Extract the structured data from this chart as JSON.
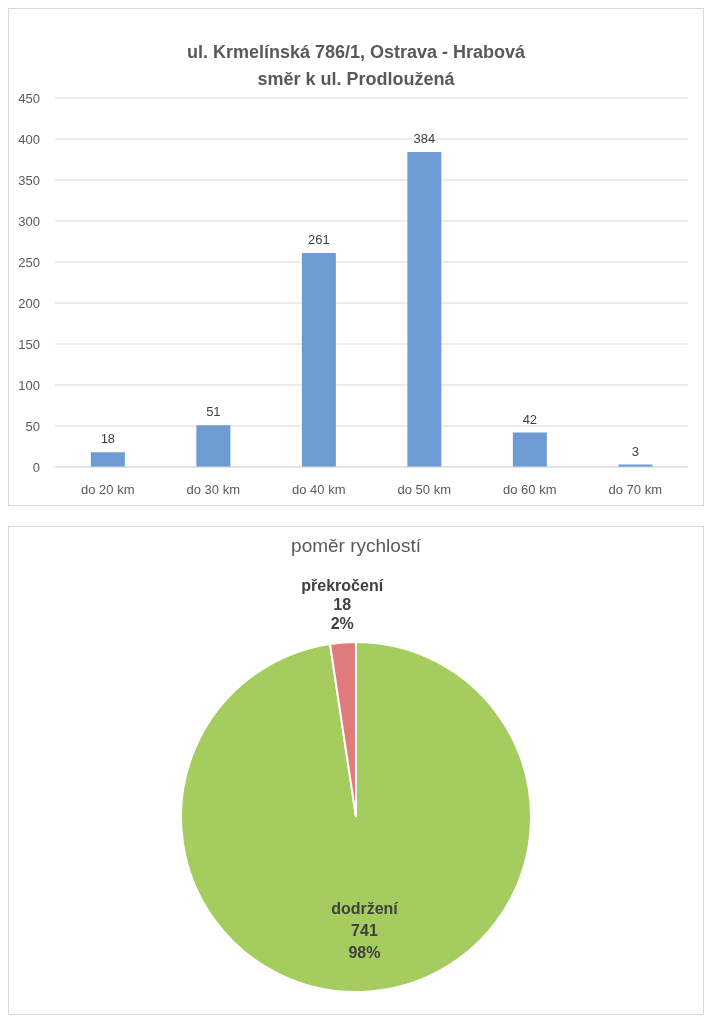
{
  "chart_data": [
    {
      "type": "bar",
      "title": "ul. Krmelínská 786/1, Ostrava - Hrabová\nsměr k ul. Prodloužená",
      "categories": [
        "do 20 km",
        "do 30 km",
        "do 40 km",
        "do 50 km",
        "do 60 km",
        "do 70 km"
      ],
      "values": [
        18,
        51,
        261,
        384,
        42,
        3
      ],
      "color": "#6f9bd3",
      "ylim": [
        0,
        450
      ],
      "yticks": [
        0,
        50,
        100,
        150,
        200,
        250,
        300,
        350,
        400,
        450
      ],
      "grid": "y",
      "data_labels": true
    },
    {
      "type": "pie",
      "title": "poměr rychlostí",
      "categories": [
        "dodržení",
        "překročení"
      ],
      "values": [
        741,
        18
      ],
      "colors": [
        "#a5cc5f",
        "#e07b7b"
      ],
      "value_labels": [
        "741\n98%",
        "18\n2%"
      ]
    }
  ]
}
